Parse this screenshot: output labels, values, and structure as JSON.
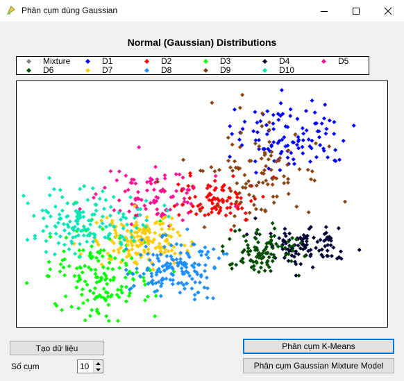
{
  "window": {
    "title": "Phân cụm dùng Gaussian"
  },
  "icons": {
    "app": "app-icon",
    "minimize": "minimize-icon",
    "maximize": "maximize-icon",
    "close": "close-icon"
  },
  "chart_data": {
    "type": "scatter",
    "title": "Normal (Gaussian) Distributions",
    "xlabel": "",
    "ylabel": "",
    "grid": false,
    "legend_position": "top",
    "series": [
      {
        "name": "Mixture",
        "color": "#808080",
        "count": 0
      },
      {
        "name": "D1",
        "color": "#0000ff",
        "center": [
          0.74,
          0.22
        ],
        "spread": [
          0.08,
          0.07
        ],
        "count": 110
      },
      {
        "name": "D2",
        "color": "#ff0000",
        "center": [
          0.53,
          0.49
        ],
        "spread": [
          0.06,
          0.05
        ],
        "count": 90
      },
      {
        "name": "D3",
        "color": "#00ff00",
        "center": [
          0.23,
          0.8
        ],
        "spread": [
          0.07,
          0.09
        ],
        "count": 160
      },
      {
        "name": "D4",
        "color": "#000033",
        "center": [
          0.78,
          0.66
        ],
        "spread": [
          0.06,
          0.04
        ],
        "count": 100
      },
      {
        "name": "D5",
        "color": "#ff1493",
        "center": [
          0.37,
          0.47
        ],
        "spread": [
          0.07,
          0.05
        ],
        "count": 90
      },
      {
        "name": "D6",
        "color": "#004d00",
        "center": [
          0.66,
          0.69
        ],
        "spread": [
          0.05,
          0.05
        ],
        "count": 100
      },
      {
        "name": "D7",
        "color": "#ffcc00",
        "center": [
          0.33,
          0.65
        ],
        "spread": [
          0.06,
          0.05
        ],
        "count": 160
      },
      {
        "name": "D8",
        "color": "#1e90ff",
        "center": [
          0.43,
          0.76
        ],
        "spread": [
          0.06,
          0.06
        ],
        "count": 150
      },
      {
        "name": "D9",
        "color": "#8b4513",
        "center": [
          0.65,
          0.37
        ],
        "spread": [
          0.09,
          0.1
        ],
        "count": 100
      },
      {
        "name": "D10",
        "color": "#00e6b8",
        "center": [
          0.19,
          0.57
        ],
        "spread": [
          0.08,
          0.06
        ],
        "count": 150
      }
    ]
  },
  "buttons": {
    "generate_label": "Tạo dữ liệu",
    "kmeans_label": "Phân cụm K-Means",
    "gmm_label": "Phân cụm Gaussian Mixture Model"
  },
  "clusters": {
    "label": "Số cụm",
    "value": "10"
  }
}
